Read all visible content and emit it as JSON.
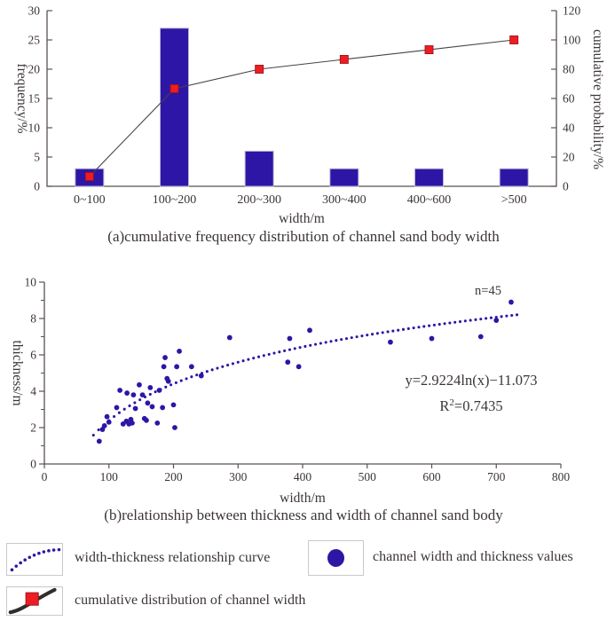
{
  "figure": {
    "background": "#ffffff",
    "panel_a_caption": "(a)cumulative frequency distribution of channel sand body width",
    "panel_b_caption": "(b)relationship between thickness and width of channel sand body"
  },
  "chart_data": [
    {
      "type": "bar",
      "title": "(a)cumulative frequency distribution of channel sand body width",
      "categories": [
        "0~100",
        "100~200",
        "200~300",
        "300~400",
        "400~600",
        ">500"
      ],
      "series": [
        {
          "name": "frequency",
          "type": "bar",
          "axis": "left",
          "values": [
            3,
            27,
            6,
            3,
            3,
            3
          ]
        },
        {
          "name": "cumulative probability",
          "type": "line-markers",
          "axis": "right",
          "values": [
            6.7,
            66.7,
            80,
            86.7,
            93.3,
            100
          ]
        }
      ],
      "xlabel": "width/m",
      "ylabel_left": "frequency/%",
      "ylabel_right": "cumulative probability/%",
      "ylim_left": [
        0,
        30
      ],
      "yticks_left": [
        0,
        5,
        10,
        15,
        20,
        25,
        30
      ],
      "ylim_right": [
        0,
        120
      ],
      "yticks_right": [
        0,
        20,
        40,
        60,
        80,
        100,
        120
      ],
      "grid": false
    },
    {
      "type": "scatter",
      "title": "(b)relationship between thickness and width of channel sand body",
      "xlabel": "width/m",
      "ylabel": "thickness/m",
      "xlim": [
        0,
        800
      ],
      "xticks": [
        0,
        100,
        200,
        300,
        400,
        500,
        600,
        700,
        800
      ],
      "ylim": [
        0,
        10
      ],
      "yticks": [
        0,
        2,
        4,
        6,
        8,
        10
      ],
      "yticks_minor": [
        1,
        3,
        5,
        7,
        9
      ],
      "annotation": "n=45",
      "equation": "y=2.9224ln(x)−11.073",
      "r_squared_label": "R²=0.7435",
      "trendline": {
        "kind": "log",
        "a": 2.9224,
        "b": -11.073,
        "x_start": 76,
        "x_end": 734,
        "style": "dotted"
      },
      "grid": false,
      "points": [
        [
          85,
          1.25
        ],
        [
          90,
          1.9
        ],
        [
          93,
          2.1
        ],
        [
          97,
          2.6
        ],
        [
          100,
          2.3
        ],
        [
          112,
          3.1
        ],
        [
          117,
          4.05
        ],
        [
          122,
          2.2
        ],
        [
          127,
          2.35
        ],
        [
          128,
          3.9
        ],
        [
          131,
          2.2
        ],
        [
          134,
          2.45
        ],
        [
          136,
          2.25
        ],
        [
          138,
          3.8
        ],
        [
          141,
          3.05
        ],
        [
          147,
          4.35
        ],
        [
          152,
          3.8
        ],
        [
          155,
          2.5
        ],
        [
          158,
          2.4
        ],
        [
          160,
          3.35
        ],
        [
          164,
          4.2
        ],
        [
          167,
          3.15
        ],
        [
          175,
          2.25
        ],
        [
          178,
          4.05
        ],
        [
          183,
          3.1
        ],
        [
          185,
          5.35
        ],
        [
          187,
          5.85
        ],
        [
          190,
          4.7
        ],
        [
          192,
          4.55
        ],
        [
          200,
          3.25
        ],
        [
          202,
          2.0
        ],
        [
          205,
          5.35
        ],
        [
          209,
          6.2
        ],
        [
          228,
          5.35
        ],
        [
          243,
          4.85
        ],
        [
          287,
          6.95
        ],
        [
          377,
          5.6
        ],
        [
          380,
          6.9
        ],
        [
          394,
          5.35
        ],
        [
          411,
          7.35
        ],
        [
          536,
          6.7
        ],
        [
          600,
          6.9
        ],
        [
          676,
          7.0
        ],
        [
          700,
          7.9
        ],
        [
          723,
          8.9
        ]
      ]
    }
  ],
  "legend": {
    "items": [
      {
        "swatch": "dotted-curve",
        "label": "width-thickness relationship curve"
      },
      {
        "swatch": "filled-circle",
        "label": "channel width and thickness values"
      },
      {
        "swatch": "curve-with-square",
        "label": "cumulative distribution of channel width"
      }
    ]
  },
  "colors": {
    "bar_fill": "#2D16A5",
    "bar_edge": "#b9b3d6",
    "marker_fill": "#EE1D23",
    "marker_edge": "#9E1218",
    "connector_line": "#4a4243",
    "scatter_fill": "#2D16A5",
    "trend_dot": "#2D16A5",
    "axis": "#5a5254",
    "text": "#3C3537",
    "legend_curve_black": "#332C2D"
  }
}
